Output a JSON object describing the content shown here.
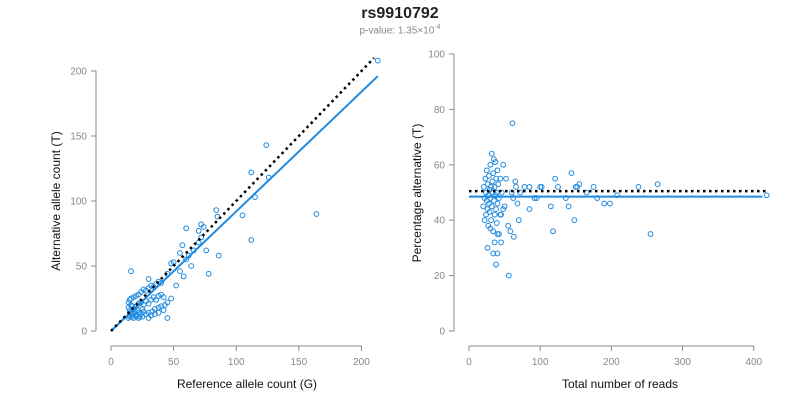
{
  "header": {
    "title": "rs9910792",
    "pvalue_prefix": "p-value: 1.35",
    "pvalue_times": "×",
    "pvalue_base": "10",
    "pvalue_exp": "-4"
  },
  "colors": {
    "points": "#1f8ae0",
    "fit_line": "#1f8ae0",
    "reference_line": "#000000",
    "axis": "#888888"
  },
  "chart_data": [
    {
      "type": "scatter",
      "xlabel": "Reference allele count (G)",
      "ylabel": "Alternative allele count (T)",
      "xlim": [
        0,
        210
      ],
      "ylim": [
        0,
        200
      ],
      "xticks": [
        0,
        50,
        100,
        150,
        200
      ],
      "yticks": [
        0,
        50,
        100,
        150,
        200
      ],
      "grid": false,
      "points": [
        [
          14,
          10
        ],
        [
          15,
          12
        ],
        [
          16,
          14
        ],
        [
          17,
          11
        ],
        [
          18,
          13
        ],
        [
          19,
          15
        ],
        [
          20,
          12
        ],
        [
          21,
          16
        ],
        [
          22,
          14
        ],
        [
          23,
          11
        ],
        [
          24,
          13
        ],
        [
          25,
          17
        ],
        [
          26,
          15
        ],
        [
          14,
          18
        ],
        [
          15,
          16
        ],
        [
          16,
          20
        ],
        [
          17,
          19
        ],
        [
          18,
          17
        ],
        [
          20,
          19
        ],
        [
          22,
          21
        ],
        [
          24,
          22
        ],
        [
          26,
          20
        ],
        [
          28,
          23
        ],
        [
          30,
          21
        ],
        [
          32,
          24
        ],
        [
          34,
          26
        ],
        [
          36,
          24
        ],
        [
          38,
          27
        ],
        [
          40,
          28
        ],
        [
          42,
          26
        ],
        [
          14,
          22
        ],
        [
          15,
          24
        ],
        [
          16,
          25
        ],
        [
          18,
          26
        ],
        [
          20,
          27
        ],
        [
          22,
          28
        ],
        [
          24,
          30
        ],
        [
          26,
          32
        ],
        [
          28,
          31
        ],
        [
          30,
          33
        ],
        [
          32,
          35
        ],
        [
          34,
          34
        ],
        [
          36,
          36
        ],
        [
          38,
          38
        ],
        [
          40,
          37
        ],
        [
          15,
          11
        ],
        [
          16,
          13
        ],
        [
          18,
          10
        ],
        [
          20,
          11
        ],
        [
          22,
          10
        ],
        [
          25,
          11
        ],
        [
          28,
          13
        ],
        [
          30,
          14
        ],
        [
          33,
          15
        ],
        [
          35,
          17
        ],
        [
          38,
          18
        ],
        [
          40,
          19
        ],
        [
          43,
          20
        ],
        [
          45,
          22
        ],
        [
          48,
          25
        ],
        [
          30,
          10
        ],
        [
          32,
          12
        ],
        [
          35,
          13
        ],
        [
          38,
          14
        ],
        [
          42,
          16
        ],
        [
          45,
          10
        ],
        [
          16,
          46
        ],
        [
          45,
          44
        ],
        [
          48,
          52
        ],
        [
          50,
          53
        ],
        [
          55,
          60
        ],
        [
          57,
          66
        ],
        [
          60,
          55
        ],
        [
          62,
          58
        ],
        [
          60,
          79
        ],
        [
          64,
          50
        ],
        [
          66,
          62
        ],
        [
          70,
          68
        ],
        [
          72,
          72
        ],
        [
          70,
          77
        ],
        [
          72,
          82
        ],
        [
          74,
          80
        ],
        [
          76,
          62
        ],
        [
          78,
          44
        ],
        [
          84,
          93
        ],
        [
          85,
          88
        ],
        [
          86,
          58
        ],
        [
          105,
          89
        ],
        [
          112,
          70
        ],
        [
          112,
          122
        ],
        [
          115,
          103
        ],
        [
          124,
          143
        ],
        [
          126,
          118
        ],
        [
          164,
          90
        ],
        [
          213,
          208
        ],
        [
          30,
          40
        ],
        [
          55,
          46
        ],
        [
          52,
          35
        ],
        [
          58,
          42
        ]
      ],
      "fit_line": {
        "x": [
          0,
          213
        ],
        "y": [
          0,
          196
        ]
      },
      "reference_line": {
        "x": [
          0,
          210
        ],
        "y": [
          0,
          210
        ]
      }
    },
    {
      "type": "scatter",
      "xlabel": "Total number of reads",
      "ylabel": "Percentage alternative (T)",
      "xlim": [
        0,
        420
      ],
      "ylim": [
        0,
        100
      ],
      "xticks": [
        0,
        100,
        200,
        300,
        400
      ],
      "yticks": [
        0,
        20,
        40,
        60,
        80,
        100
      ],
      "grid": false,
      "points": [
        [
          20,
          45
        ],
        [
          21,
          52
        ],
        [
          22,
          48
        ],
        [
          22,
          40
        ],
        [
          23,
          55
        ],
        [
          24,
          50
        ],
        [
          24,
          42
        ],
        [
          25,
          58
        ],
        [
          25,
          47
        ],
        [
          26,
          44
        ],
        [
          26,
          53
        ],
        [
          27,
          49
        ],
        [
          27,
          38
        ],
        [
          28,
          56
        ],
        [
          28,
          46
        ],
        [
          29,
          51
        ],
        [
          29,
          43
        ],
        [
          30,
          60
        ],
        [
          30,
          48
        ],
        [
          31,
          52
        ],
        [
          31,
          40
        ],
        [
          32,
          64
        ],
        [
          32,
          45
        ],
        [
          33,
          54
        ],
        [
          33,
          50
        ],
        [
          34,
          36
        ],
        [
          34,
          57
        ],
        [
          35,
          47
        ],
        [
          35,
          62
        ],
        [
          36,
          42
        ],
        [
          36,
          52
        ],
        [
          37,
          49
        ],
        [
          37,
          61
        ],
        [
          38,
          44
        ],
        [
          38,
          55
        ],
        [
          39,
          39
        ],
        [
          39,
          50
        ],
        [
          40,
          46
        ],
        [
          40,
          58
        ],
        [
          41,
          53
        ],
        [
          42,
          48
        ],
        [
          42,
          35
        ],
        [
          44,
          55
        ],
        [
          45,
          42
        ],
        [
          46,
          50
        ],
        [
          48,
          60
        ],
        [
          50,
          45
        ],
        [
          52,
          55
        ],
        [
          55,
          38
        ],
        [
          56,
          20
        ],
        [
          58,
          36
        ],
        [
          60,
          50
        ],
        [
          61,
          75
        ],
        [
          62,
          48
        ],
        [
          63,
          34
        ],
        [
          65,
          54
        ],
        [
          66,
          52
        ],
        [
          68,
          46
        ],
        [
          70,
          40
        ],
        [
          72,
          50
        ],
        [
          34,
          28
        ],
        [
          36,
          32
        ],
        [
          38,
          24
        ],
        [
          40,
          28
        ],
        [
          45,
          32
        ],
        [
          40,
          35
        ],
        [
          26,
          30
        ],
        [
          30,
          37
        ],
        [
          44,
          42
        ],
        [
          48,
          44
        ],
        [
          78,
          52
        ],
        [
          85,
          44
        ],
        [
          95,
          48
        ],
        [
          102,
          52
        ],
        [
          115,
          45
        ],
        [
          118,
          36
        ],
        [
          121,
          55
        ],
        [
          125,
          52
        ],
        [
          136,
          48
        ],
        [
          140,
          45
        ],
        [
          144,
          57
        ],
        [
          148,
          40
        ],
        [
          150,
          52
        ],
        [
          152,
          52
        ],
        [
          155,
          53
        ],
        [
          165,
          50
        ],
        [
          175,
          52
        ],
        [
          180,
          48
        ],
        [
          190,
          46
        ],
        [
          198,
          46
        ],
        [
          208,
          49
        ],
        [
          238,
          52
        ],
        [
          255,
          35
        ],
        [
          265,
          53
        ],
        [
          418,
          49
        ],
        [
          100,
          52
        ],
        [
          85,
          52
        ],
        [
          92,
          48
        ]
      ],
      "fit_line": {
        "x": [
          0,
          412
        ],
        "y": [
          48.5,
          48.5
        ]
      },
      "reference_line": {
        "x": [
          0,
          420
        ],
        "y": [
          50.5,
          50.5
        ]
      }
    }
  ]
}
